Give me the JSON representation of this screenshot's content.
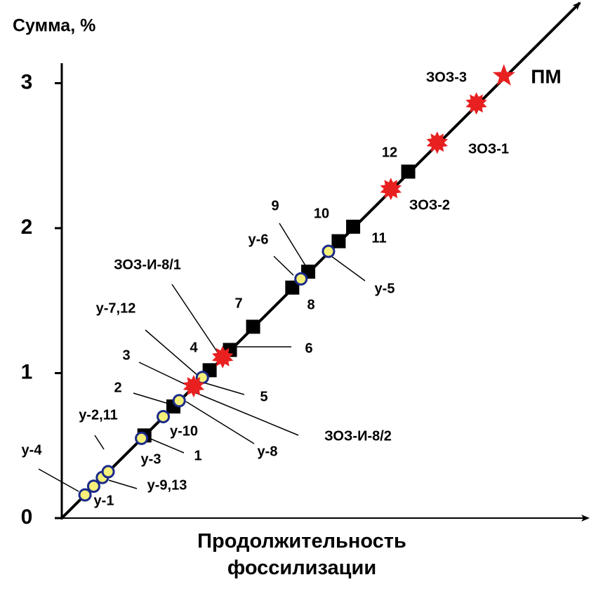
{
  "chart_data": {
    "type": "scatter",
    "y_label": "Сумма, %",
    "x_label": "Продолжительность фоссилизации",
    "ylim": [
      0,
      3.5
    ],
    "yticks": [
      0,
      1,
      2,
      3
    ],
    "line_color": "#000000",
    "series": [
      {
        "marker": "square",
        "color": "#000000",
        "values": [
          0.57,
          0.77,
          1.02,
          1.16,
          1.32,
          1.59,
          1.7,
          1.91,
          2.01,
          2.39
        ]
      },
      {
        "marker": "circle",
        "color": "#f5f07a",
        "edge": "#1a2a8a",
        "values": [
          0.16,
          0.22,
          0.28,
          0.32,
          0.55,
          0.7,
          0.81,
          0.97,
          1.65,
          1.84
        ]
      },
      {
        "marker": "burst",
        "color": "#e82020",
        "values": [
          0.91,
          1.11,
          2.27,
          2.59,
          2.86
        ]
      },
      {
        "marker": "star",
        "color": "#e82020",
        "values": [
          3.05
        ]
      }
    ],
    "annotations": [
      "у-4",
      "у-2,11",
      "у-1",
      "у-9,13",
      "у-3",
      "1",
      "у-10",
      "2",
      "3",
      "у-8",
      "у-7,12",
      "5",
      "4",
      "ЗОЗ-И-8/2",
      "ЗОЗ-И-8/1",
      "6",
      "7",
      "8",
      "у-6",
      "9",
      "у-5",
      "10",
      "11",
      "12",
      "ЗОЗ-2",
      "ЗОЗ-1",
      "ЗОЗ-3",
      "ПМ"
    ]
  }
}
